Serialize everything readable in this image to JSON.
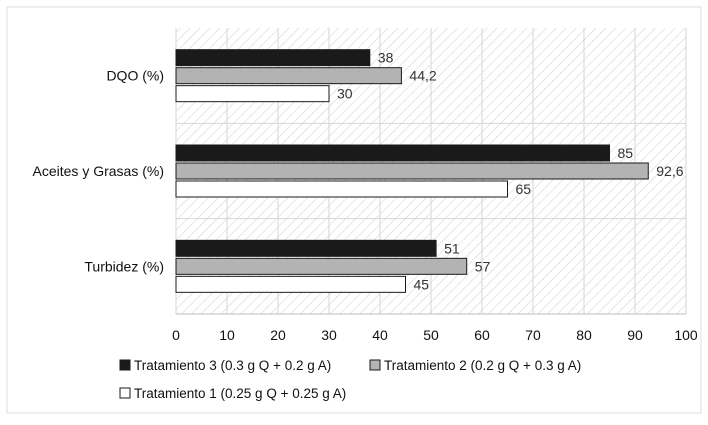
{
  "chart_data": {
    "type": "bar",
    "orientation": "horizontal",
    "categories": [
      "DQO (%)",
      "Aceites y Grasas (%)",
      "Turbidez (%)"
    ],
    "series": [
      {
        "name": "Tratamiento 3 (0.3 g Q + 0.2 g A)",
        "values": [
          38,
          85,
          51
        ],
        "labels": [
          "38",
          "85",
          "51"
        ],
        "color": "#1a1a1a"
      },
      {
        "name": "Tratamiento 2 (0.2 g Q + 0.3 g A)",
        "values": [
          44.2,
          92.6,
          57
        ],
        "labels": [
          "44,2",
          "92,6",
          "57"
        ],
        "color": "#b3b3b3"
      },
      {
        "name": "Tratamiento 1 (0.25 g Q + 0.25 g A)",
        "values": [
          30,
          65,
          45
        ],
        "labels": [
          "30",
          "65",
          "45"
        ],
        "color": "#ffffff"
      }
    ],
    "xlim": [
      0,
      100
    ],
    "xticks": [
      "0",
      "10",
      "20",
      "30",
      "40",
      "50",
      "60",
      "70",
      "80",
      "90",
      "100"
    ],
    "grid": "vertical",
    "plot_background": "diagonal-hatch",
    "legend_position": "bottom"
  }
}
